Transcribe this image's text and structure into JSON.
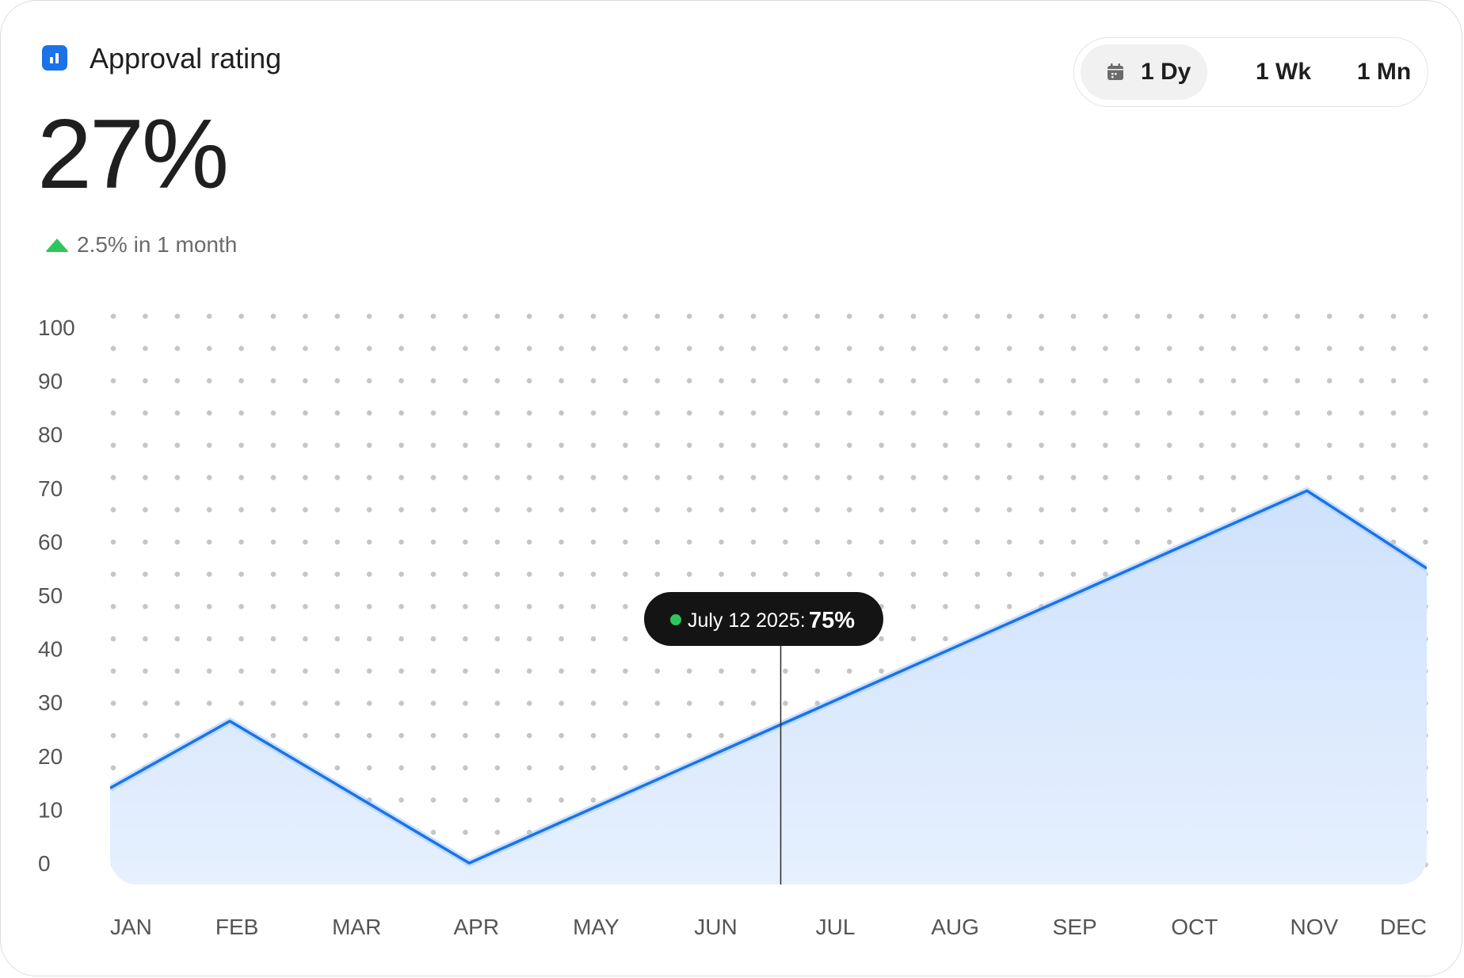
{
  "header": {
    "title": "Approval rating",
    "icon": "bar-chart-icon",
    "accent_color": "#1a73e8"
  },
  "summary": {
    "value": "27%",
    "delta_text": "2.5% in 1 month",
    "delta_direction": "up",
    "delta_color": "#2fc55e"
  },
  "range_selector": {
    "options": [
      {
        "label": "1 Dy",
        "icon": "calendar-icon",
        "selected": true
      },
      {
        "label": "1 Wk",
        "selected": false
      },
      {
        "label": "1 Mn",
        "selected": false
      }
    ]
  },
  "tooltip": {
    "date": "July 12 2025:",
    "value": "75%",
    "dot_color": "#2fc55e"
  },
  "chart_data": {
    "type": "area",
    "title": "",
    "xlabel": "",
    "ylabel": "",
    "categories": [
      "JAN",
      "FEB",
      "MAR",
      "APR",
      "MAY",
      "JUN",
      "JUL",
      "AUG",
      "SEP",
      "OCT",
      "NOV",
      "DEC"
    ],
    "y_ticks": [
      "100",
      "90",
      "80",
      "70",
      "60",
      "50",
      "40",
      "30",
      "20",
      "10",
      "0"
    ],
    "ylim": [
      0,
      100
    ],
    "grid": "dotted",
    "line_color": "#1a73e8",
    "fill_color": "#d6e7fd",
    "series": [
      {
        "points": [
          {
            "x": "JAN",
            "y": 14
          },
          {
            "x": "FEB",
            "y": 26.5
          },
          {
            "x": "APR",
            "y": 0
          },
          {
            "x": "NOV",
            "y": 69.5
          },
          {
            "x": "DEC",
            "y": 55
          }
        ]
      }
    ],
    "marker_category": "JUL"
  }
}
